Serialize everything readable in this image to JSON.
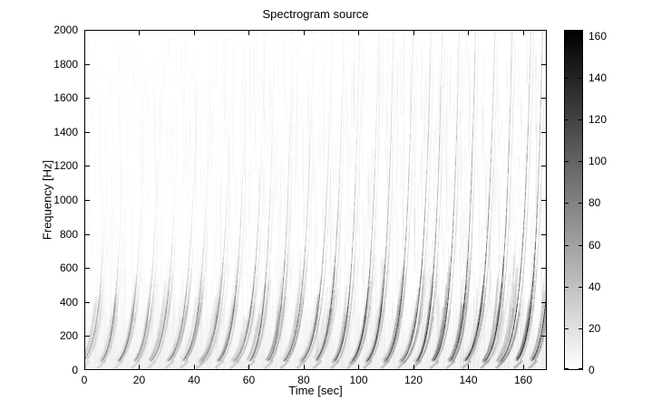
{
  "figure": {
    "background": "#ffffff",
    "frame_color": "#000000"
  },
  "chart_data": {
    "type": "heatmap",
    "subtype": "spectrogram",
    "title": "Spectrogram source",
    "xlabel": "Time [sec]",
    "ylabel": "Frequency [Hz]",
    "x_range": [
      0,
      168.6
    ],
    "y_range": [
      0,
      2000
    ],
    "x_ticks": [
      0,
      20,
      40,
      60,
      80,
      100,
      120,
      140,
      160
    ],
    "y_ticks": [
      0,
      200,
      400,
      600,
      800,
      1000,
      1200,
      1400,
      1600,
      1800,
      2000
    ],
    "grid": false,
    "colormap": "gray-reversed (0 = white, max = black)",
    "colorbar": {
      "position": "right",
      "range": [
        0,
        163
      ],
      "ticks": [
        0,
        20,
        40,
        60,
        80,
        100,
        120,
        140,
        160
      ]
    },
    "content": {
      "description": "Series of repeated upward exponential frequency chirps on a white background. Each chirp starts near 0-50 Hz, sweeps up toward 2000 Hz with increasing slope, strongest (darkest) energy between about 60 and 350 Hz forming overlapping V-shaped clusters along the bottom; traces fade with frequency. Later chirps are stronger and remain visible to higher frequencies. Faint vertical noise streaks cover the whole plot.",
      "chirp_count": 28,
      "chirp_period_sec": 6.05,
      "chirp_start_freq_hz": 45,
      "chirp_exp_time_constant_sec": 2.7,
      "chirp_max_freq_hz": 2000,
      "strongest_band_hz": [
        60,
        350
      ],
      "peak_magnitude": 163,
      "intensity_trend": "increases with time"
    }
  }
}
